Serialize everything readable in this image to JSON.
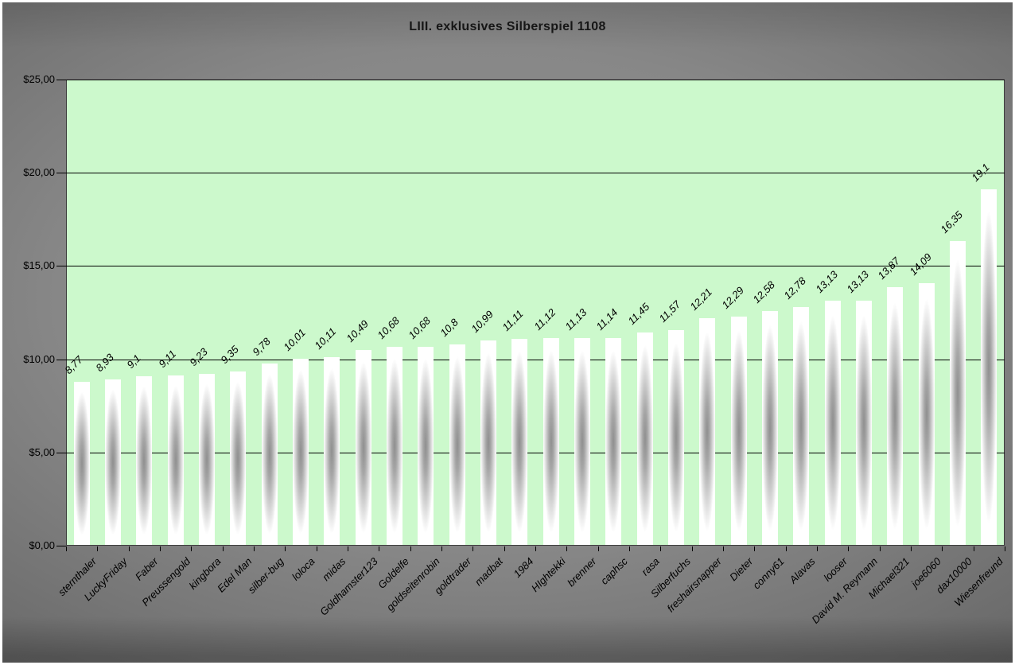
{
  "chart_data": {
    "type": "bar",
    "title": "LIII. exklusives Silberspiel 1108",
    "categories": [
      "sternthaler",
      "LuckyFriday",
      "Faber",
      "Preussengold",
      "kingbora",
      "Edel Man",
      "silber-bug",
      "loloca",
      "midas",
      "Goldhamster123",
      "Goldelfe",
      "goldseitenrobin",
      "goldtrader",
      "madbat",
      "1984",
      "HIghtekki",
      "brenner",
      "caphsc",
      "rasa",
      "Silberfuchs",
      "freshairsnapper",
      "Dieter",
      "conny61",
      "Alavas",
      "looser",
      "David M. Reymann",
      "Michael321",
      "joe6060",
      "dax10000",
      "Wiesenfreund"
    ],
    "values": [
      8.77,
      8.93,
      9.1,
      9.11,
      9.23,
      9.35,
      9.78,
      10.01,
      10.11,
      10.49,
      10.68,
      10.68,
      10.8,
      10.99,
      11.11,
      11.12,
      11.13,
      11.14,
      11.45,
      11.57,
      12.21,
      12.29,
      12.58,
      12.78,
      13.13,
      13.13,
      13.87,
      14.09,
      16.35,
      19.1
    ],
    "value_labels": [
      "8,77",
      "8,93",
      "9,1",
      "9,11",
      "9,23",
      "9,35",
      "9,78",
      "10,01",
      "10,11",
      "10,49",
      "10,68",
      "10,68",
      "10,8",
      "10,99",
      "11,11",
      "11,12",
      "11,13",
      "11,14",
      "11,45",
      "11,57",
      "12,21",
      "12,29",
      "12,58",
      "12,78",
      "13,13",
      "13,13",
      "13,87",
      "14,09",
      "16,35",
      "19,1"
    ],
    "y_ticks": [
      {
        "value": 0,
        "label": "$0,00"
      },
      {
        "value": 5,
        "label": "$5,00"
      },
      {
        "value": 10,
        "label": "$10,00"
      },
      {
        "value": 15,
        "label": "$15,00"
      },
      {
        "value": 20,
        "label": "$20,00"
      },
      {
        "value": 25,
        "label": "$25,00"
      }
    ],
    "gridline_values": [
      5,
      10,
      15,
      20,
      25
    ],
    "ylim": [
      0,
      25
    ],
    "grid": true,
    "legend": "none",
    "colors": {
      "plot_bg": "#ccf9cc",
      "chart_bg": "#7d7d7d",
      "bar_center": "#8f8f8f",
      "bar_edge": "#ffffff",
      "gridline": "#000000",
      "text": "#000000"
    }
  }
}
